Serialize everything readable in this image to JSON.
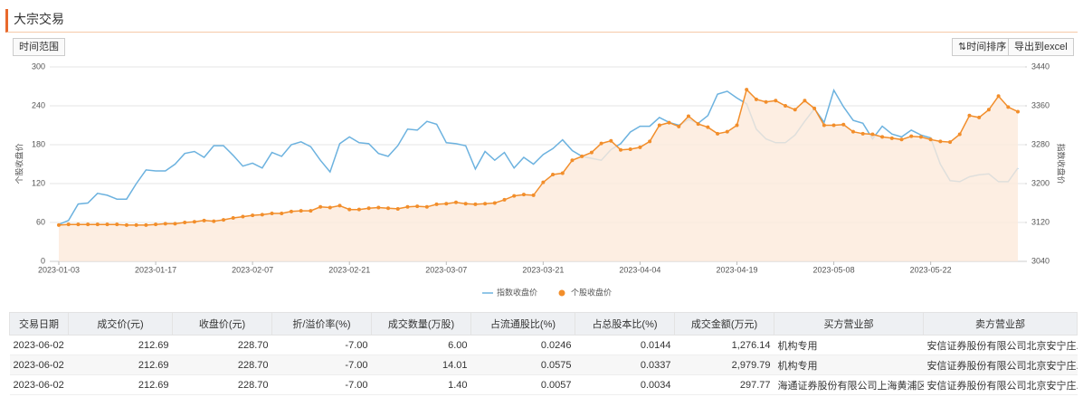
{
  "header": {
    "title": "大宗交易"
  },
  "toolbar": {
    "range": "时间范围",
    "sort": "⇅时间排序",
    "export": "导出到excel"
  },
  "chart_data": {
    "type": "line",
    "categories": [
      "2023-01-03",
      null,
      null,
      null,
      null,
      null,
      null,
      null,
      null,
      null,
      "2023-01-17",
      null,
      null,
      null,
      null,
      null,
      null,
      null,
      null,
      null,
      "2023-02-07",
      null,
      null,
      null,
      null,
      null,
      null,
      null,
      null,
      null,
      "2023-02-21",
      null,
      null,
      null,
      null,
      null,
      null,
      null,
      null,
      null,
      "2023-03-07",
      null,
      null,
      null,
      null,
      null,
      null,
      null,
      null,
      null,
      "2023-03-21",
      null,
      null,
      null,
      null,
      null,
      null,
      null,
      null,
      null,
      "2023-04-04",
      null,
      null,
      null,
      null,
      null,
      null,
      null,
      null,
      null,
      "2023-04-19",
      null,
      null,
      null,
      null,
      null,
      null,
      null,
      null,
      null,
      "2023-05-08",
      null,
      null,
      null,
      null,
      null,
      null,
      null,
      null,
      null,
      "2023-05-22",
      null,
      null,
      null,
      null,
      null,
      null,
      null,
      null,
      null
    ],
    "ylabel": "个股收盘价",
    "y2label": "指数收盘价",
    "ylim": [
      0,
      300
    ],
    "yticks": [
      0,
      60,
      120,
      180,
      240,
      300
    ],
    "y2lim": [
      3040,
      3440
    ],
    "y2ticks": [
      3040,
      3120,
      3200,
      3280,
      3360,
      3440
    ],
    "grid": true,
    "legend": "bottom",
    "series": [
      {
        "name": "指数收盘价",
        "color": "#6cb2df",
        "axis": "y2",
        "values": [
          3116,
          3124,
          3158,
          3160,
          3180,
          3176,
          3168,
          3168,
          3200,
          3228,
          3226,
          3226,
          3240,
          3262,
          3266,
          3254,
          3278,
          3278,
          3258,
          3236,
          3242,
          3232,
          3264,
          3256,
          3280,
          3286,
          3276,
          3248,
          3224,
          3282,
          3296,
          3284,
          3282,
          3262,
          3256,
          3278,
          3312,
          3310,
          3328,
          3322,
          3284,
          3282,
          3278,
          3230,
          3266,
          3248,
          3264,
          3232,
          3254,
          3240,
          3260,
          3272,
          3290,
          3268,
          3256,
          3252,
          3248,
          3270,
          3282,
          3306,
          3318,
          3318,
          3336,
          3326,
          3320,
          3332,
          3324,
          3340,
          3384,
          3390,
          3376,
          3364,
          3312,
          3292,
          3284,
          3284,
          3300,
          3328,
          3354,
          3326,
          3392,
          3358,
          3330,
          3324,
          3292,
          3318,
          3302,
          3296,
          3310,
          3300,
          3294,
          3240,
          3206,
          3204,
          3214,
          3218,
          3220,
          3204,
          3204,
          3232
        ]
      },
      {
        "name": "个股收盘价",
        "color": "#f28e2b",
        "fill": "#fdeadb",
        "area": true,
        "markers": true,
        "values": [
          56,
          57,
          57,
          57,
          57,
          57,
          57,
          56,
          56,
          56,
          57,
          58,
          58,
          60,
          61,
          63,
          62,
          64,
          67,
          69,
          71,
          72,
          74,
          74,
          77,
          78,
          78,
          84,
          83,
          86,
          80,
          80,
          82,
          83,
          82,
          81,
          84,
          85,
          84,
          88,
          89,
          91,
          89,
          88,
          89,
          90,
          95,
          101,
          103,
          102,
          122,
          134,
          136,
          156,
          162,
          168,
          182,
          186,
          172,
          173,
          176,
          185,
          210,
          214,
          208,
          224,
          212,
          207,
          197,
          200,
          210,
          265,
          250,
          246,
          248,
          240,
          234,
          248,
          236,
          210,
          210,
          211,
          200,
          197,
          196,
          192,
          190,
          188,
          193,
          192,
          188,
          185,
          184,
          196,
          225,
          222,
          234,
          255,
          238,
          231
        ]
      }
    ]
  },
  "table": {
    "columns": [
      "交易日期",
      "成交价(元)",
      "收盘价(元)",
      "折/溢价率(%)",
      "成交数量(万股)",
      "占流通股比(%)",
      "占总股本比(%)",
      "成交金额(万元)",
      "买方营业部",
      "卖方营业部"
    ],
    "rows": [
      [
        "2023-06-02",
        "212.69",
        "228.70",
        "-7.00",
        "6.00",
        "0.0246",
        "0.0144",
        "1,276.14",
        "机构专用",
        "安信证券股份有限公司北京安宁庄..."
      ],
      [
        "2023-06-02",
        "212.69",
        "228.70",
        "-7.00",
        "14.01",
        "0.0575",
        "0.0337",
        "2,979.79",
        "机构专用",
        "安信证券股份有限公司北京安宁庄..."
      ],
      [
        "2023-06-02",
        "212.69",
        "228.70",
        "-7.00",
        "1.40",
        "0.0057",
        "0.0034",
        "297.77",
        "海通证券股份有限公司上海黄浦区...",
        "安信证券股份有限公司北京安宁庄..."
      ]
    ]
  }
}
